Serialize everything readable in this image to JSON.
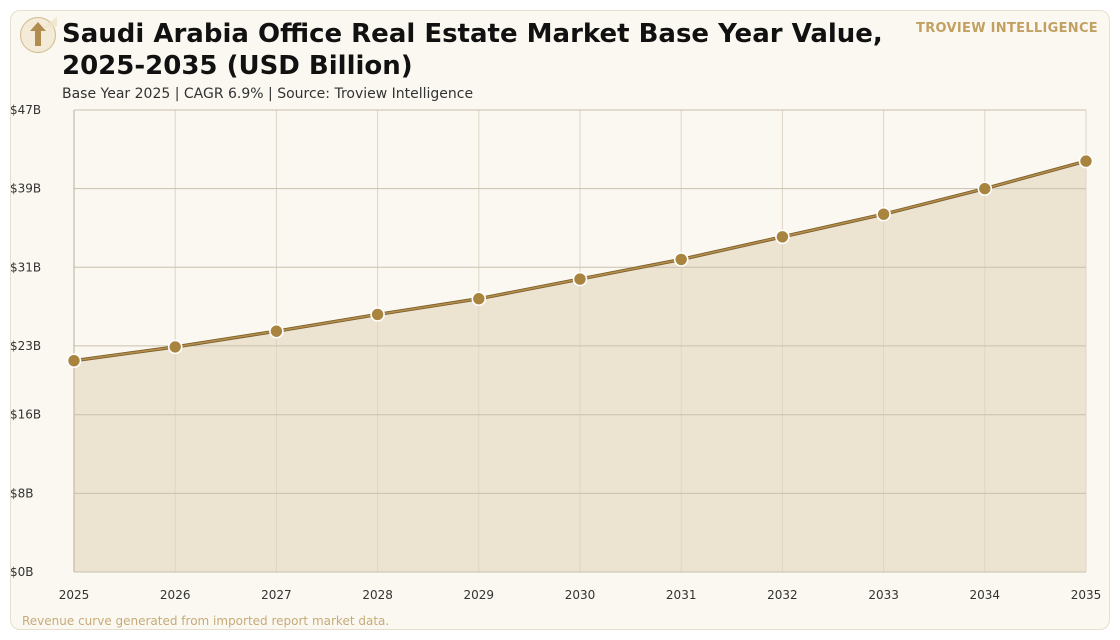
{
  "header": {
    "title": "Saudi Arabia Office Real Estate Market Base Year Value, 2025-2035 (USD Billion)",
    "subtitle": "Base Year 2025 | CAGR 6.9% | Source: Troview Intelligence",
    "brand": "TROVIEW INTELLIGENCE"
  },
  "footer": {
    "note": "Revenue curve generated from imported report market data."
  },
  "logo": {
    "icon": "up-arrow-icon"
  },
  "colors": {
    "line": "#a07a3c",
    "marker": "#a8843f",
    "area": "#ede3d1",
    "grid": "#c9c0b0",
    "accent": "#c2a062"
  },
  "chart_data": {
    "type": "area",
    "x": [
      "2025",
      "2026",
      "2027",
      "2028",
      "2029",
      "2030",
      "2031",
      "2032",
      "2033",
      "2034",
      "2035"
    ],
    "series": [
      {
        "values": [
          21.5,
          22.9,
          24.5,
          26.2,
          27.8,
          29.8,
          31.8,
          34.1,
          36.4,
          39.0,
          41.8
        ]
      }
    ],
    "ylim": [
      0,
      47
    ],
    "yticks": [
      0,
      8,
      16,
      23,
      31,
      39,
      47
    ],
    "ytick_labels": [
      "$0B",
      "$8B",
      "$16B",
      "$23B",
      "$31B",
      "$39B",
      "$47B"
    ],
    "grid": true,
    "legend": "none"
  }
}
